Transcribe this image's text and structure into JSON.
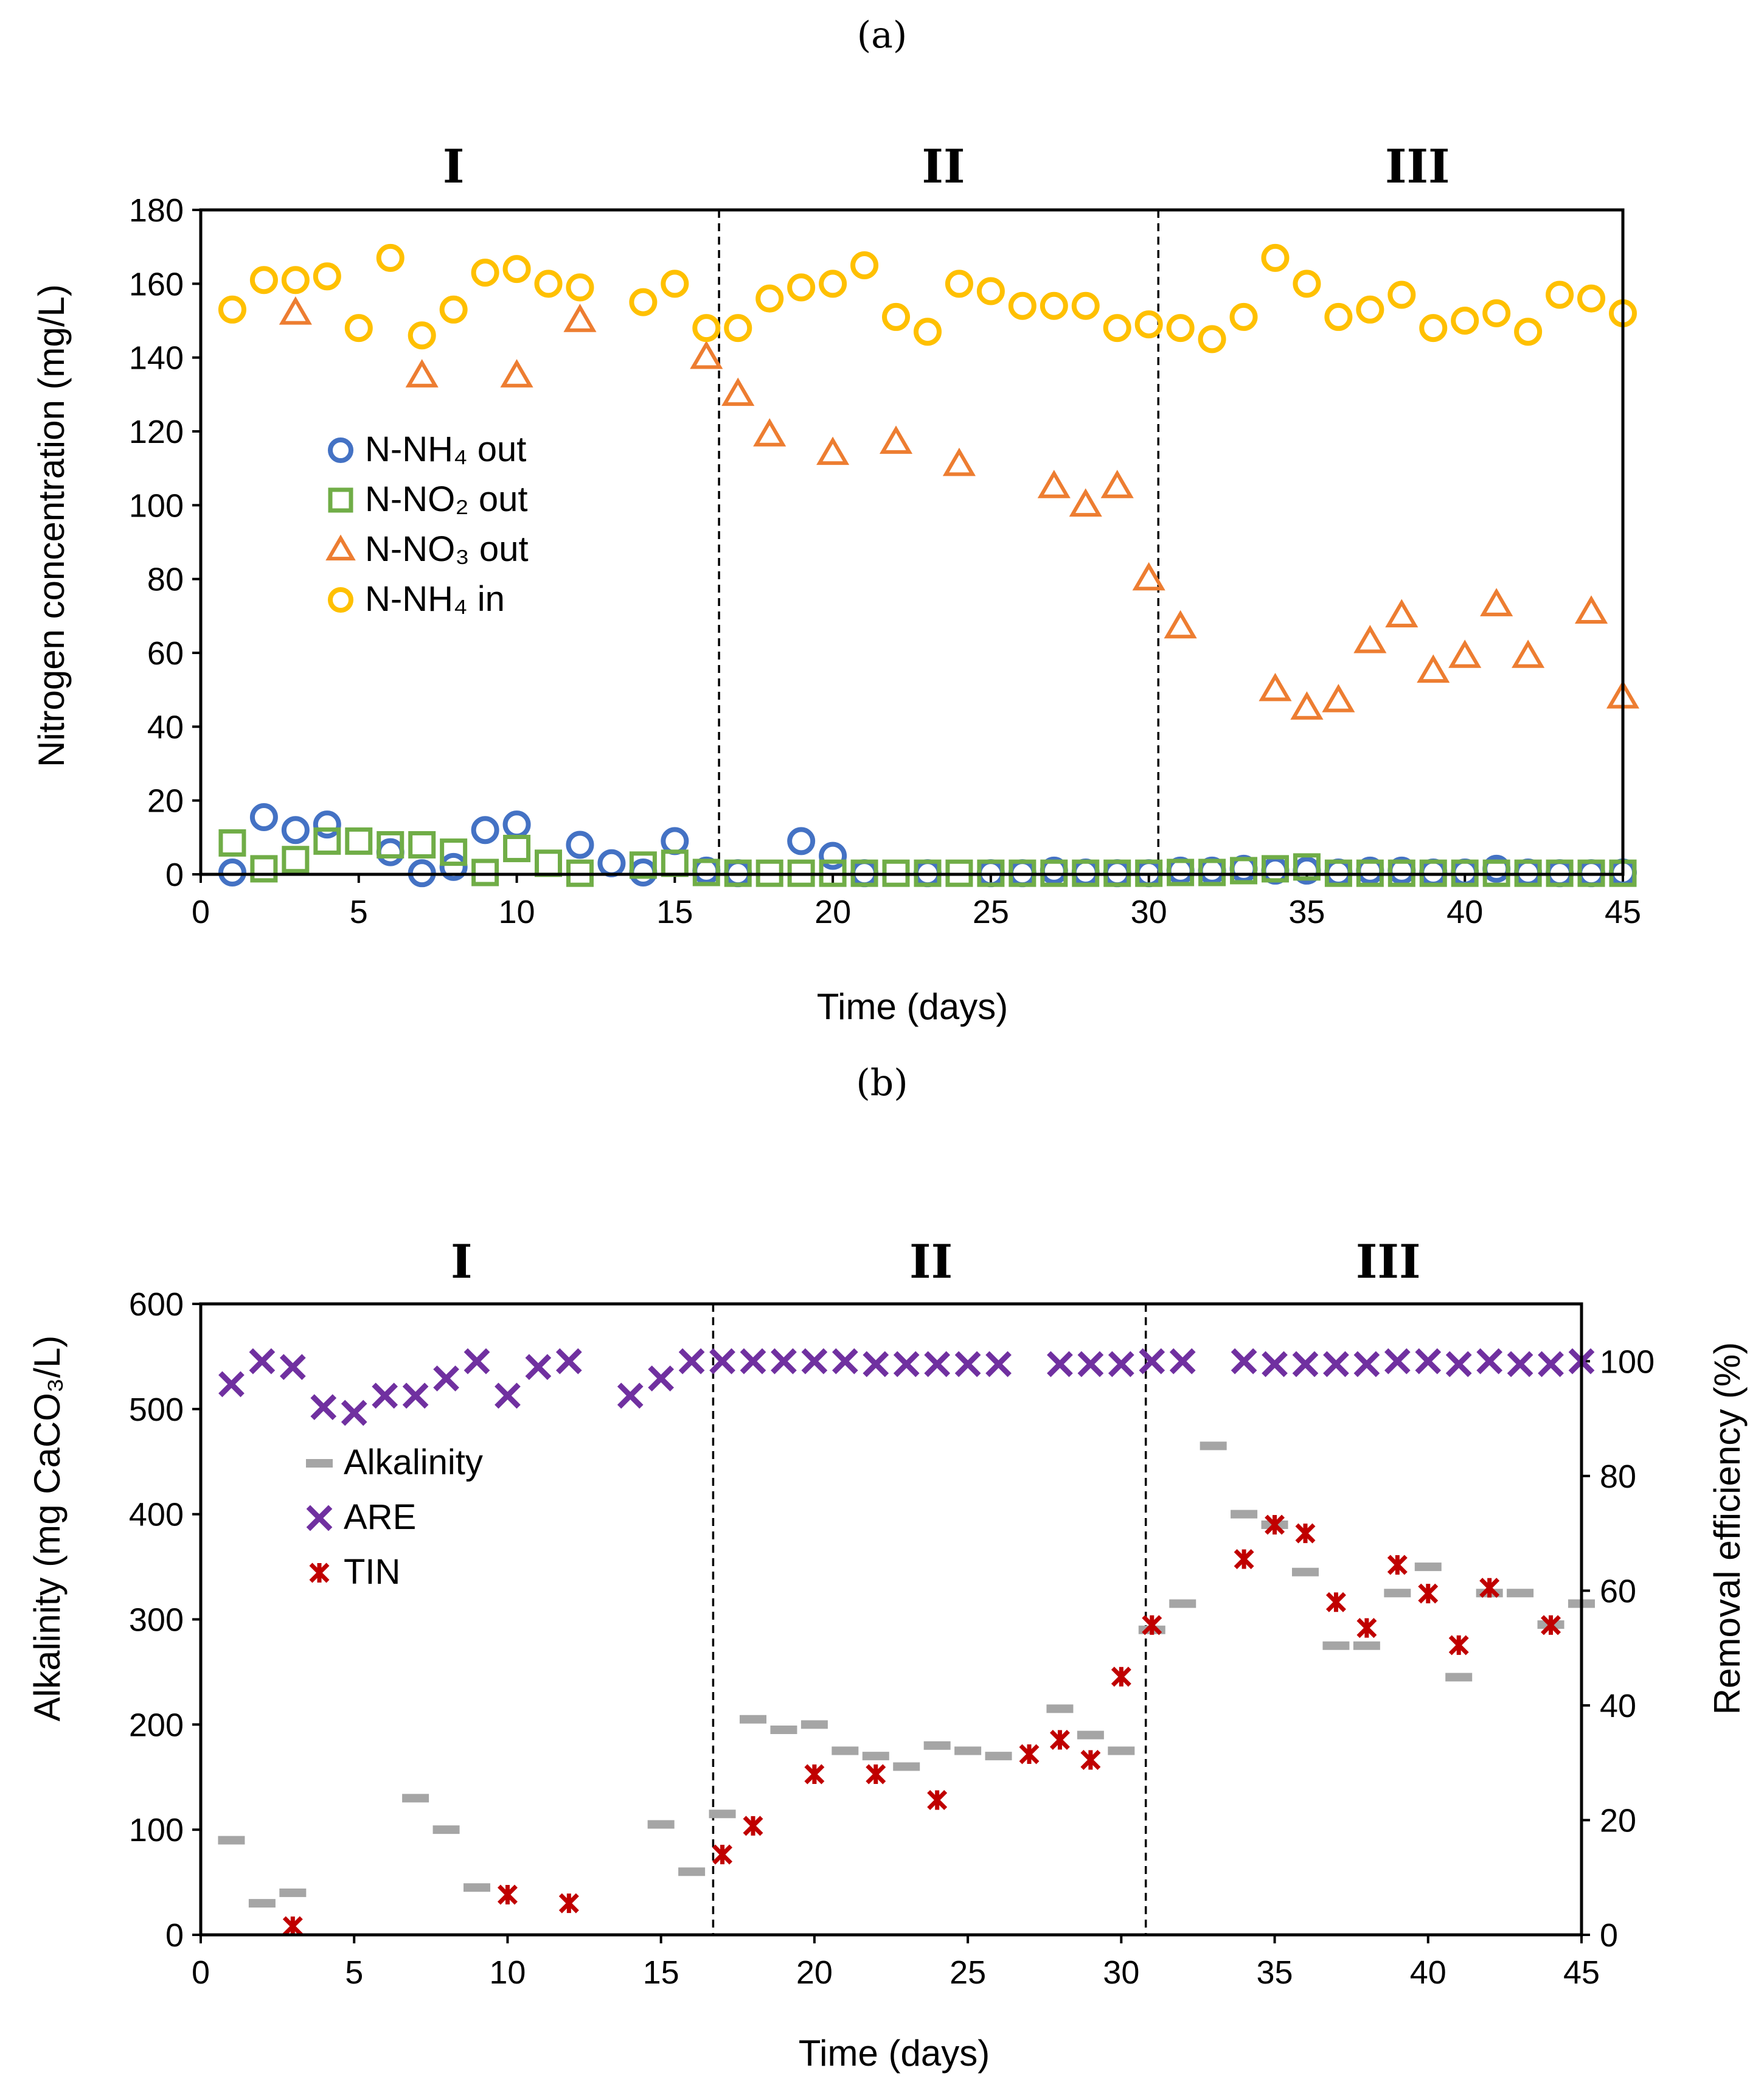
{
  "chart_data": [
    {
      "type": "scatter",
      "panel_label": "(a)",
      "title": "",
      "phases": [
        {
          "label": "I",
          "x_center": 8
        },
        {
          "label": "II",
          "x_center": 23.5
        },
        {
          "label": "III",
          "x_center": 38.5
        }
      ],
      "phase_boundaries": [
        16.4,
        30.3
      ],
      "xlabel": "Time (days)",
      "ylabel": "Nitrogen concentration (mg/L)",
      "xlim": [
        0,
        45
      ],
      "ylim": [
        0,
        180
      ],
      "xticks": [
        0,
        5,
        10,
        15,
        20,
        25,
        30,
        35,
        40,
        45
      ],
      "yticks": [
        0,
        20,
        40,
        60,
        80,
        100,
        120,
        140,
        160,
        180
      ],
      "legend_position": "middle-left",
      "series": [
        {
          "name": "N-NH₄ out",
          "marker": "circle",
          "color": "#4472C4",
          "x": [
            1,
            2,
            3,
            4,
            6,
            7,
            8,
            9,
            10,
            12,
            13,
            14,
            15,
            16,
            17,
            19,
            20,
            21,
            23,
            25,
            26,
            27,
            28,
            29,
            30,
            31,
            32,
            33,
            34,
            35,
            36,
            37,
            38,
            39,
            40,
            41,
            42,
            43,
            44,
            45
          ],
          "y": [
            0.5,
            15.5,
            12,
            13.5,
            6,
            0.3,
            2,
            12,
            13.5,
            8,
            3,
            0.5,
            9,
            1,
            0.3,
            9,
            5,
            0.3,
            0.3,
            0.3,
            0.3,
            1,
            0.5,
            0.3,
            0.3,
            1,
            1,
            1.5,
            1,
            1,
            0.5,
            1,
            1,
            0.5,
            0.5,
            1.5,
            0.5,
            0.3,
            0.3,
            0.5
          ]
        },
        {
          "name": "N-NO₂ out",
          "marker": "square",
          "color": "#70AD47",
          "x": [
            1,
            2,
            3,
            4,
            5,
            6,
            7,
            8,
            9,
            10,
            11,
            12,
            14,
            15,
            16,
            17,
            18,
            19,
            20,
            21,
            22,
            23,
            24,
            25,
            26,
            27,
            28,
            29,
            30,
            31,
            32,
            33,
            34,
            35,
            36,
            37,
            38,
            39,
            40,
            41,
            42,
            43,
            44,
            45
          ],
          "y": [
            8.5,
            1.5,
            4,
            9,
            9,
            8,
            8,
            6,
            0.5,
            7,
            3,
            0.3,
            2.5,
            3,
            0.5,
            0.3,
            0.3,
            0.3,
            0.3,
            0.3,
            0.3,
            0.3,
            0.3,
            0.3,
            0.3,
            0.3,
            0.3,
            0.3,
            0.3,
            0.5,
            0.5,
            1,
            1.5,
            2,
            0.3,
            0.3,
            0.3,
            0.3,
            0.3,
            0.3,
            0.3,
            0.3,
            0.3,
            0.3
          ]
        },
        {
          "name": "N-NO₃ out",
          "marker": "triangle",
          "color": "#ED7D31",
          "x": [
            3,
            7,
            10,
            12,
            16,
            17,
            18,
            20,
            22,
            24,
            27,
            28,
            29,
            30,
            31,
            34,
            35,
            36,
            37,
            38,
            39,
            40,
            41,
            42,
            44,
            45
          ],
          "y": [
            152,
            135,
            135,
            150,
            140,
            130,
            119,
            114,
            117,
            111,
            105,
            100,
            105,
            80,
            67,
            50,
            45,
            47,
            63,
            70,
            55,
            59,
            73,
            59,
            71,
            48
          ]
        },
        {
          "name": "N-NH₄ in",
          "marker": "circle",
          "color": "#FFC000",
          "x": [
            1,
            2,
            3,
            4,
            5,
            6,
            7,
            8,
            9,
            10,
            11,
            12,
            14,
            15,
            16,
            17,
            18,
            19,
            20,
            21,
            22,
            23,
            24,
            25,
            26,
            27,
            28,
            29,
            30,
            31,
            32,
            33,
            34,
            35,
            36,
            37,
            38,
            39,
            40,
            41,
            42,
            43,
            44,
            45
          ],
          "y": [
            153,
            161,
            161,
            162,
            148,
            167,
            146,
            153,
            163,
            164,
            160,
            159,
            155,
            160,
            148,
            148,
            156,
            159,
            160,
            165,
            151,
            147,
            160,
            158,
            154,
            154,
            154,
            148,
            149,
            148,
            145,
            151,
            167,
            160,
            151,
            153,
            157,
            148,
            150,
            152,
            147,
            157,
            156,
            152
          ]
        }
      ]
    },
    {
      "type": "scatter",
      "panel_label": "(b)",
      "title": "",
      "phases": [
        {
          "label": "I",
          "x_center": 8.5
        },
        {
          "label": "II",
          "x_center": 23.8
        },
        {
          "label": "III",
          "x_center": 38.7
        }
      ],
      "phase_boundaries": [
        16.7,
        30.8
      ],
      "xlabel": "Time (days)",
      "ylabel": "Alkalinity (mg CaCO₃/L)",
      "ylabel_right": "Removal efficiency (%)",
      "xlim": [
        0,
        45
      ],
      "ylim": [
        0,
        600
      ],
      "ylim_right": [
        0,
        110
      ],
      "xticks": [
        0,
        5,
        10,
        15,
        20,
        25,
        30,
        35,
        40,
        45
      ],
      "yticks": [
        0,
        100,
        200,
        300,
        400,
        500,
        600
      ],
      "yticks_right": [
        0,
        20,
        40,
        60,
        80,
        100
      ],
      "legend_position": "middle-left",
      "series": [
        {
          "name": "Alkalinity",
          "marker": "dash",
          "color": "#A5A5A5",
          "axis": "left",
          "x": [
            1,
            2,
            3,
            7,
            8,
            9,
            15,
            16,
            17,
            18,
            19,
            20,
            21,
            22,
            23,
            24,
            25,
            26,
            28,
            29,
            30,
            31,
            32,
            33,
            34,
            35,
            36,
            37,
            38,
            39,
            40,
            41,
            42,
            43,
            44,
            45
          ],
          "y": [
            90,
            30,
            40,
            130,
            100,
            45,
            105,
            60,
            115,
            205,
            195,
            200,
            175,
            170,
            160,
            180,
            175,
            170,
            215,
            190,
            175,
            290,
            315,
            465,
            400,
            390,
            345,
            275,
            275,
            325,
            350,
            245,
            325,
            325,
            295,
            315
          ]
        },
        {
          "name": "ARE",
          "marker": "x",
          "color": "#7030A0",
          "axis": "right",
          "x": [
            1,
            2,
            3,
            4,
            5,
            6,
            7,
            8,
            9,
            10,
            11,
            12,
            14,
            15,
            16,
            17,
            18,
            19,
            20,
            21,
            22,
            23,
            24,
            25,
            26,
            28,
            29,
            30,
            31,
            32,
            34,
            35,
            36,
            37,
            38,
            39,
            40,
            41,
            42,
            43,
            44,
            45
          ],
          "y": [
            96,
            100,
            99,
            92,
            91,
            94,
            94,
            97,
            100,
            94,
            99,
            100,
            94,
            97,
            100,
            100,
            100,
            100,
            100,
            100,
            99.5,
            99.5,
            99.5,
            99.5,
            99.5,
            99.5,
            99.5,
            99.5,
            100,
            100,
            100,
            99.5,
            99.5,
            99.5,
            99.5,
            100,
            100,
            99.5,
            100,
            99.5,
            99.5,
            100
          ]
        },
        {
          "name": "TIN",
          "marker": "star",
          "color": "#C00000",
          "axis": "right",
          "x": [
            3,
            10,
            12,
            17,
            18,
            20,
            22,
            24,
            27,
            28,
            29,
            30,
            31,
            34,
            35,
            36,
            37,
            38,
            39,
            40,
            41,
            42,
            44
          ],
          "y": [
            1.5,
            7,
            5.5,
            14,
            19,
            28,
            28,
            23.5,
            31.5,
            34,
            30.5,
            45,
            54,
            65.5,
            71.5,
            70,
            58,
            53.5,
            64.5,
            59.5,
            50.5,
            60.5,
            54
          ]
        }
      ]
    }
  ]
}
